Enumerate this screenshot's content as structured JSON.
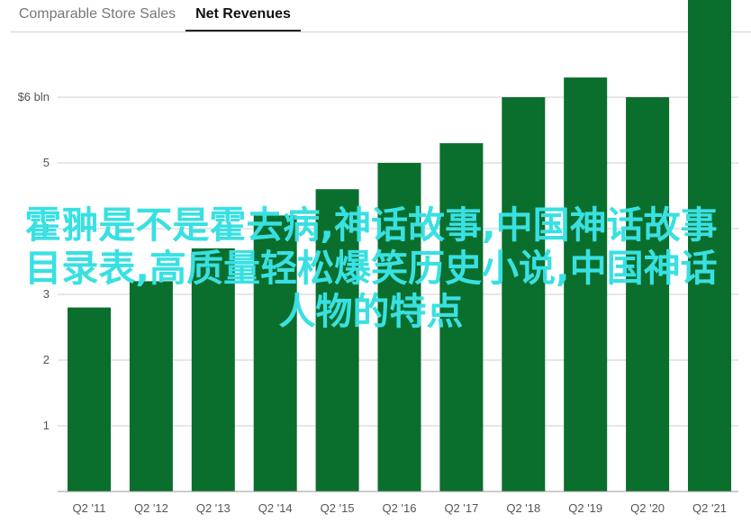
{
  "tabs": [
    {
      "label": "Comparable Store Sales",
      "active": false
    },
    {
      "label": "Net Revenues",
      "active": true
    }
  ],
  "overlay_text": "霍翀是不是霍去病,神话故事,中国神话故事目录表,高质量轻松爆笑历史小说,中国神话人物的特点",
  "chart_data": {
    "type": "bar",
    "title": "",
    "xlabel": "",
    "ylabel": "",
    "categories": [
      "Q2 '11",
      "Q2 '12",
      "Q2 '13",
      "Q2 '14",
      "Q2 '15",
      "Q2 '16",
      "Q2 '17",
      "Q2 '18",
      "Q2 '19",
      "Q2 '20",
      "Q2 '21"
    ],
    "values": [
      2.8,
      3.2,
      3.7,
      4.2,
      4.6,
      5.0,
      5.3,
      6.0,
      6.3,
      6.0,
      7.9
    ],
    "ylim": [
      0,
      8.2
    ],
    "yticks": [
      1,
      2,
      3,
      4,
      5,
      6
    ],
    "ytick_labels": [
      "1",
      "2",
      "3",
      "4",
      "5",
      "$6 bln"
    ],
    "grid": true,
    "bar_color": "#0a6e2c"
  }
}
